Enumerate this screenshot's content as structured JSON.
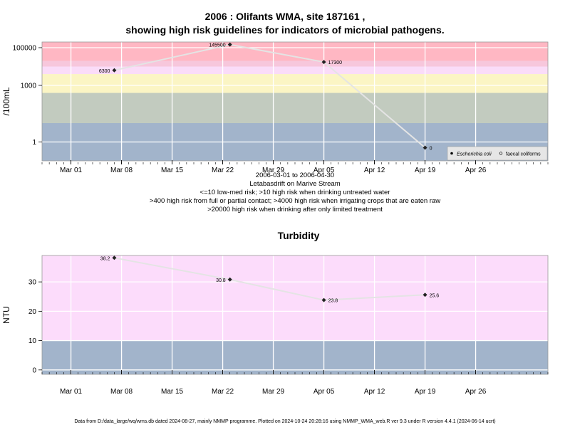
{
  "page": {
    "title_line1": "2006 : Olifants WMA, site 187161 ,",
    "title_line2": "showing high risk guidelines for indicators of microbial pathogens.",
    "footer": "Data from D:/data_large/wq/wms.db dated 2024-08-27, mainly NMMP programme. Plotted on 2024-10-24 20:28:16 using NMMP_WMA_web.R ver 9.3 under R version 4.4.1 (2024-06-14 ucrt)"
  },
  "chart_data": [
    {
      "type": "line",
      "title": "",
      "ylabel": "/100mL",
      "xlabel": "",
      "y_scale": "log",
      "ylim": [
        0.1,
        200000
      ],
      "yticks": [
        1,
        1000,
        100000
      ],
      "ytick_labels": [
        "1",
        "1000",
        "100000"
      ],
      "xlim": [
        "2006-02-25",
        "2006-05-06"
      ],
      "xticks": [
        "2006-03-01",
        "2006-03-08",
        "2006-03-15",
        "2006-03-22",
        "2006-03-29",
        "2006-04-05",
        "2006-04-12",
        "2006-04-19",
        "2006-04-26"
      ],
      "xtick_labels": [
        "Mar 01",
        "Mar 08",
        "Mar 15",
        "Mar 22",
        "Mar 29",
        "Apr 05",
        "Apr 12",
        "Apr 19",
        "Apr 26"
      ],
      "grid": true,
      "caption_lines": [
        "2006-03-01 to 2006-04-30",
        "Letabasdrift on Marive Stream",
        "<=10 low-med risk; >10 high risk when drinking untreated water",
        ">400 high risk from full or partial contact; >4000 high risk when irrigating crops that are eaten raw",
        ">20000 high risk when drinking after only limited treatment"
      ],
      "risk_bands": [
        {
          "from": 0.1,
          "to": 10,
          "color": "#a2b4cb"
        },
        {
          "from": 10,
          "to": 400,
          "color": "#c2cbbf"
        },
        {
          "from": 400,
          "to": 4000,
          "color": "#fbf5c4"
        },
        {
          "from": 4000,
          "to": 10000,
          "color": "#fadcf8"
        },
        {
          "from": 10000,
          "to": 20000,
          "color": "#f7c7dc"
        },
        {
          "from": 20000,
          "to": 200000,
          "color": "#ffb7c3"
        }
      ],
      "legend": {
        "placement": "bottom-right",
        "entries": [
          "Escherichia coli",
          "faecal coliforms"
        ]
      },
      "series": [
        {
          "name": "Escherichia coli",
          "x": [
            "2006-03-07",
            "2006-03-23",
            "2006-04-05",
            "2006-04-19"
          ],
          "values": [
            6300,
            145500,
            17300,
            0.5
          ],
          "labels": [
            "6300",
            "145500",
            "17300",
            "0"
          ]
        }
      ],
      "colors": {
        "line": "#e4e4e4",
        "marker": "#222222",
        "grid": "#ffffff"
      }
    },
    {
      "type": "line",
      "title": "Turbidity",
      "ylabel": "NTU",
      "xlabel": "",
      "y_scale": "linear",
      "ylim": [
        -1.5,
        39
      ],
      "yticks": [
        0,
        10,
        20,
        30
      ],
      "ytick_labels": [
        "0",
        "10",
        "20",
        "30"
      ],
      "xlim": [
        "2006-02-25",
        "2006-05-06"
      ],
      "xticks": [
        "2006-03-01",
        "2006-03-08",
        "2006-03-15",
        "2006-03-22",
        "2006-03-29",
        "2006-04-05",
        "2006-04-12",
        "2006-04-19",
        "2006-04-26"
      ],
      "xtick_labels": [
        "Mar 01",
        "Mar 08",
        "Mar 15",
        "Mar 22",
        "Mar 29",
        "Apr 05",
        "Apr 12",
        "Apr 19",
        "Apr 26"
      ],
      "grid": true,
      "risk_bands": [
        {
          "from": -1.5,
          "to": 10,
          "color": "#a2b4cb"
        },
        {
          "from": 10,
          "to": 39,
          "color": "#fcdcfb"
        }
      ],
      "series": [
        {
          "x": [
            "2006-03-07",
            "2006-03-23",
            "2006-04-05",
            "2006-04-19"
          ],
          "values": [
            38.2,
            30.8,
            23.8,
            25.6
          ],
          "labels": [
            "38.2",
            "30.8",
            "23.8",
            "25.6"
          ]
        }
      ],
      "colors": {
        "line": "#e4e4e4",
        "marker": "#222222",
        "grid": "#ffffff"
      }
    }
  ]
}
